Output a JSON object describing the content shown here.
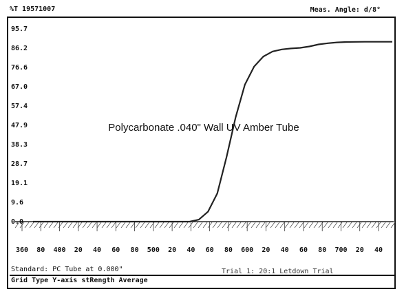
{
  "header": {
    "left": "%T 19571007",
    "right": "Meas. Angle: d/8°"
  },
  "footer": {
    "standard": "Standard: PC Tube at 0.000\"",
    "trial": "Trial 1: 20:1 Letdown Trial",
    "grid_type": "Grid Type Y-axis stRength Average"
  },
  "chart_data": {
    "type": "line",
    "title": "Polycarbonate .040\" Wall UV Amber Tube",
    "xlabel": "",
    "ylabel": "",
    "xlim": [
      360,
      750
    ],
    "ylim": [
      0,
      95.7
    ],
    "y_ticks": [
      "95.7",
      "86.2",
      "76.6",
      "67.0",
      "57.4",
      "47.9",
      "38.3",
      "28.7",
      "19.1",
      "9.6",
      "0.0"
    ],
    "x_ticks": [
      "360",
      "80",
      "400",
      "20",
      "40",
      "60",
      "80",
      "500",
      "20",
      "40",
      "60",
      "80",
      "600",
      "20",
      "40",
      "60",
      "80",
      "700",
      "20",
      "40"
    ],
    "grid": false,
    "color": "#222222",
    "series": [
      {
        "x": [
          360,
          380,
          400,
          420,
          440,
          460,
          480,
          500,
          510,
          520,
          530,
          540,
          550,
          560,
          570,
          580,
          590,
          600,
          610,
          620,
          630,
          640,
          650,
          660,
          670,
          680,
          690,
          700,
          720,
          740,
          750
        ],
        "y": [
          0,
          0,
          0,
          0,
          0,
          0,
          0,
          0,
          0,
          0,
          0,
          1,
          5,
          14,
          32,
          52,
          68,
          77,
          82,
          84.5,
          85.5,
          86,
          86.3,
          87,
          88,
          88.6,
          89,
          89.2,
          89.3,
          89.3,
          89.3
        ]
      }
    ]
  }
}
